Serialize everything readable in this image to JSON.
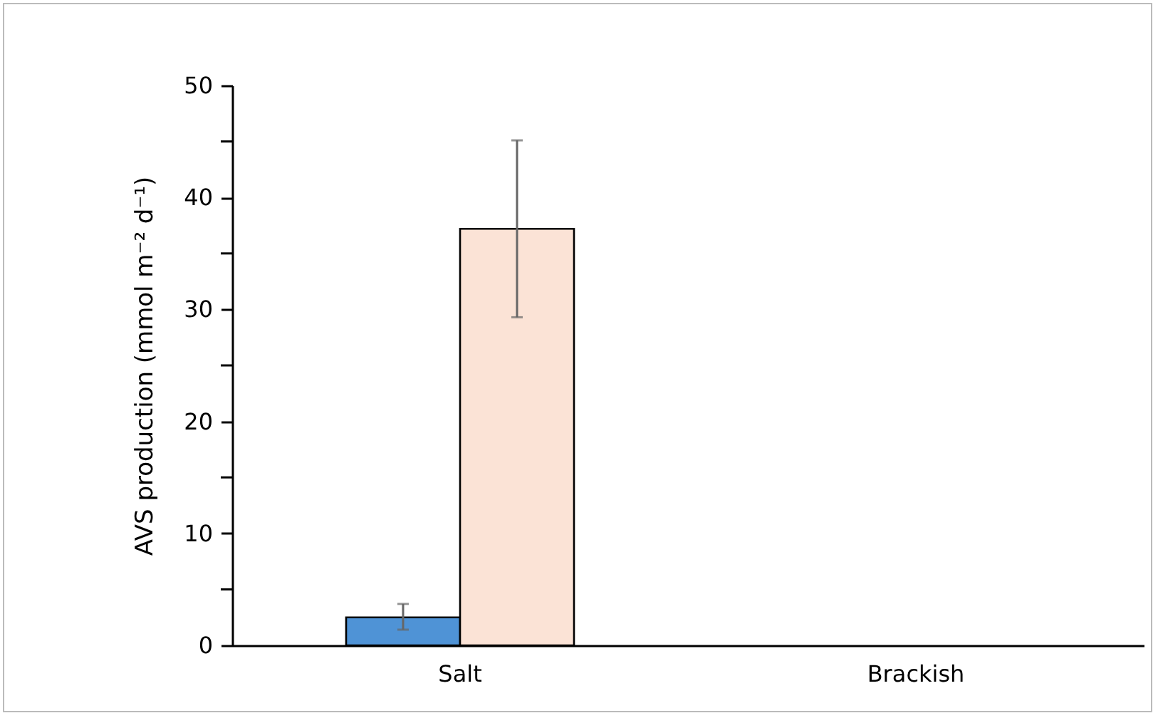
{
  "chart_data": {
    "type": "bar",
    "ylabel": "AVS production (mmol m⁻² d⁻¹)",
    "categories": [
      "Salt",
      "Brackish"
    ],
    "series": [
      {
        "color": "#4f93d6",
        "values": [
          2.5,
          null
        ],
        "errors": [
          [
            1.4,
            3.7
          ],
          null
        ]
      },
      {
        "color": "#fbe3d6",
        "values": [
          37.2,
          null
        ],
        "errors": [
          [
            29.3,
            45.1
          ],
          null
        ]
      }
    ],
    "ylim": [
      0,
      50
    ],
    "yticks": [
      0,
      {
        "value": 5,
        "label": null
      },
      10,
      {
        "value": 15,
        "label": null
      },
      20,
      {
        "value": 25,
        "label": null
      },
      30,
      {
        "value": 35,
        "label": null
      },
      40,
      {
        "value": 45,
        "label": null
      },
      50
    ],
    "grid": false,
    "legend": false
  }
}
